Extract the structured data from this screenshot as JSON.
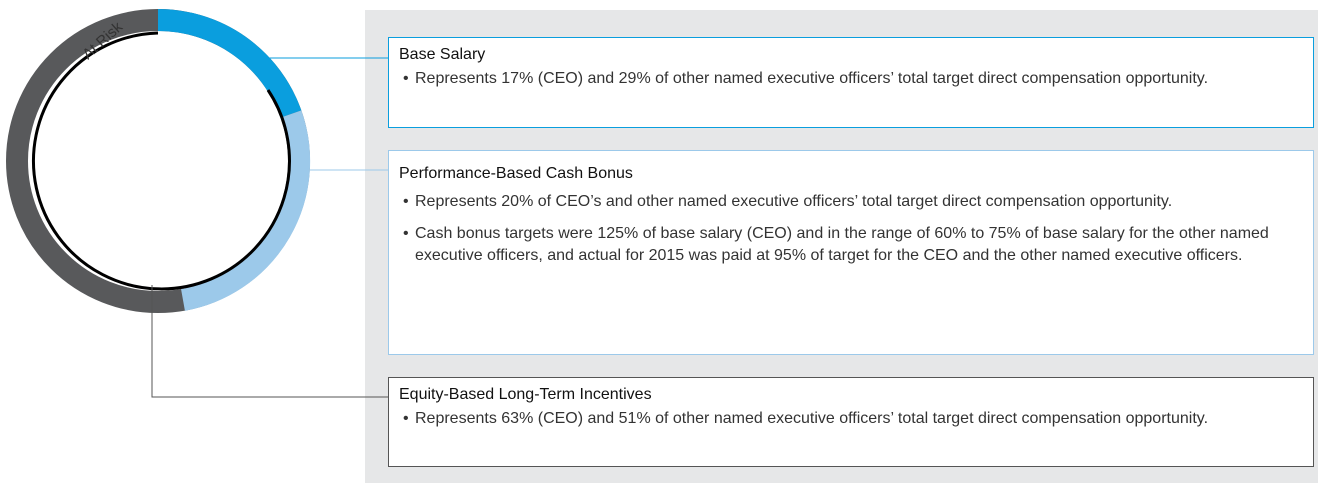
{
  "ring_label": "At Risk",
  "items": [
    {
      "title": "Base Salary",
      "bullets": [
        "Represents 17% (CEO) and 29% of other named executive officers’ total target direct compensation opportunity."
      ]
    },
    {
      "title": "Performance-Based Cash Bonus",
      "bullets": [
        "Represents 20% of CEO’s and other named executive officers’ total target direct compensation opportunity.",
        "Cash bonus targets were 125% of base salary (CEO) and in the range of 60% to 75% of base salary for the other named executive officers, and actual for 2015 was paid at 95% of target for the CEO and the other named executive officers."
      ]
    },
    {
      "title": "Equity-Based Long-Term Incentives",
      "bullets": [
        "Represents 63% (CEO) and 51% of other named executive officers’ total target direct compensation opportunity."
      ]
    }
  ]
}
